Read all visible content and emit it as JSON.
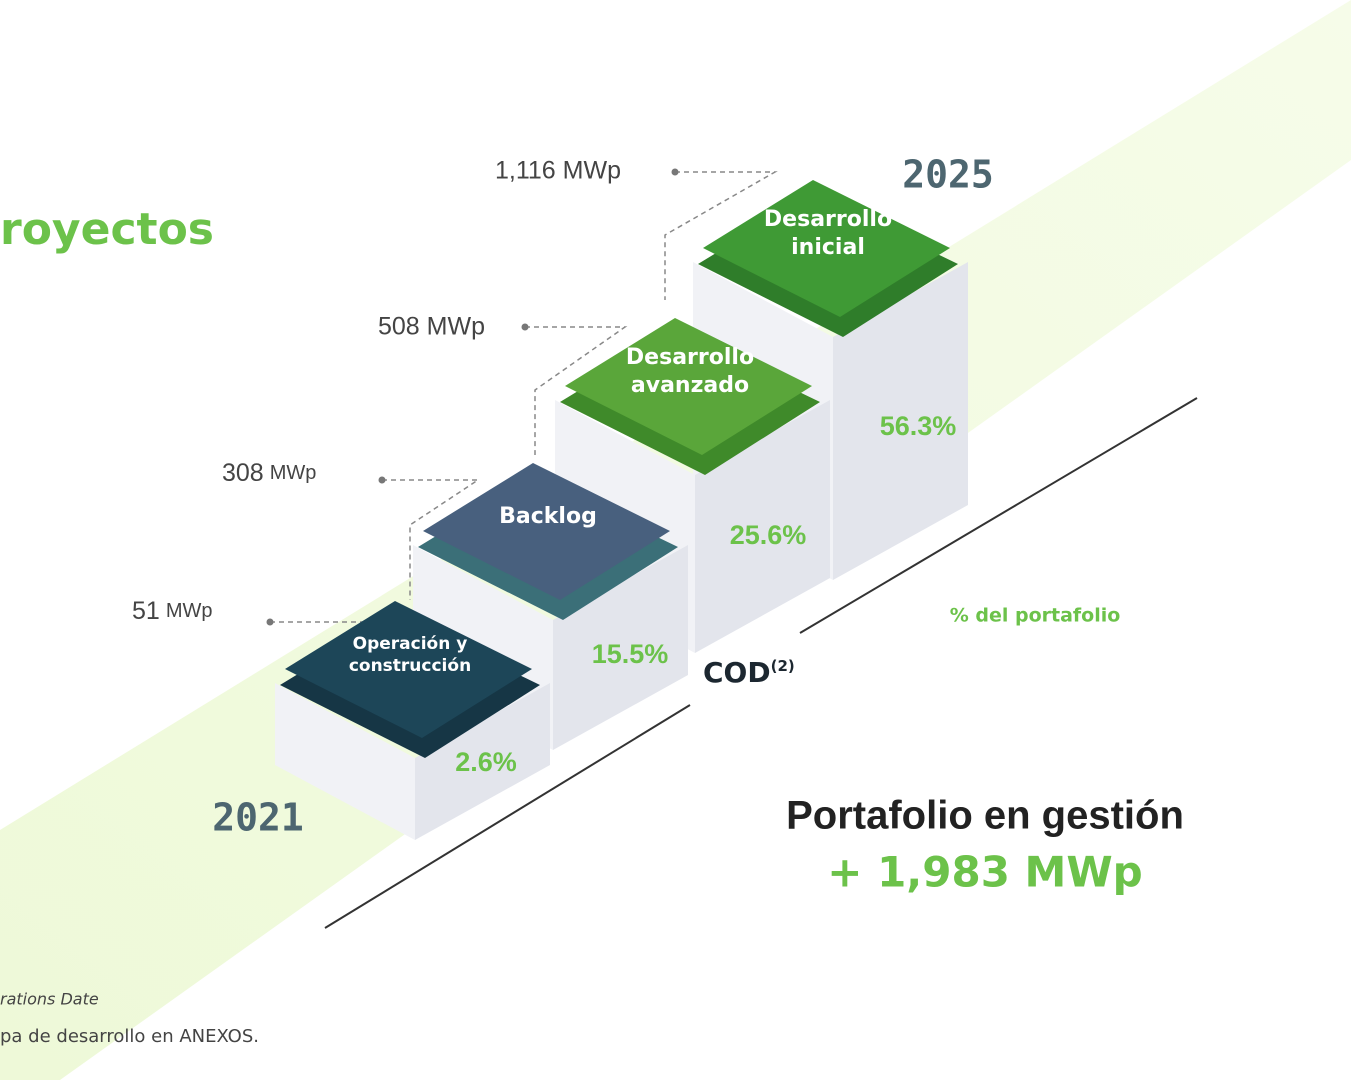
{
  "title": "royectos",
  "year_end": "2025",
  "year_start": "2021",
  "steps": [
    {
      "lines": [
        "Desarrollo",
        "inicial"
      ],
      "capacity": "1,116 MWp",
      "share": "56.3%"
    },
    {
      "lines": [
        "Desarrollo",
        "avanzado"
      ],
      "capacity": "508 MWp",
      "share": "25.6%"
    },
    {
      "lines": [
        "Backlog"
      ],
      "capacity_value": "308",
      "capacity_unit": "MWp",
      "share": "15.5%"
    },
    {
      "lines": [
        "Operación y",
        "construcción"
      ],
      "capacity_value": "51",
      "capacity_unit": "MWp",
      "share": "2.6%"
    }
  ],
  "share_axis_label": "% del portafolio",
  "cod_label": "COD",
  "cod_note": "(2)",
  "summary": {
    "title": "Portafolio en gestión",
    "value": "+ 1,983 MWp"
  },
  "footnotes": [
    "rations Date",
    "pa de desarrollo en ANEXOS."
  ]
}
